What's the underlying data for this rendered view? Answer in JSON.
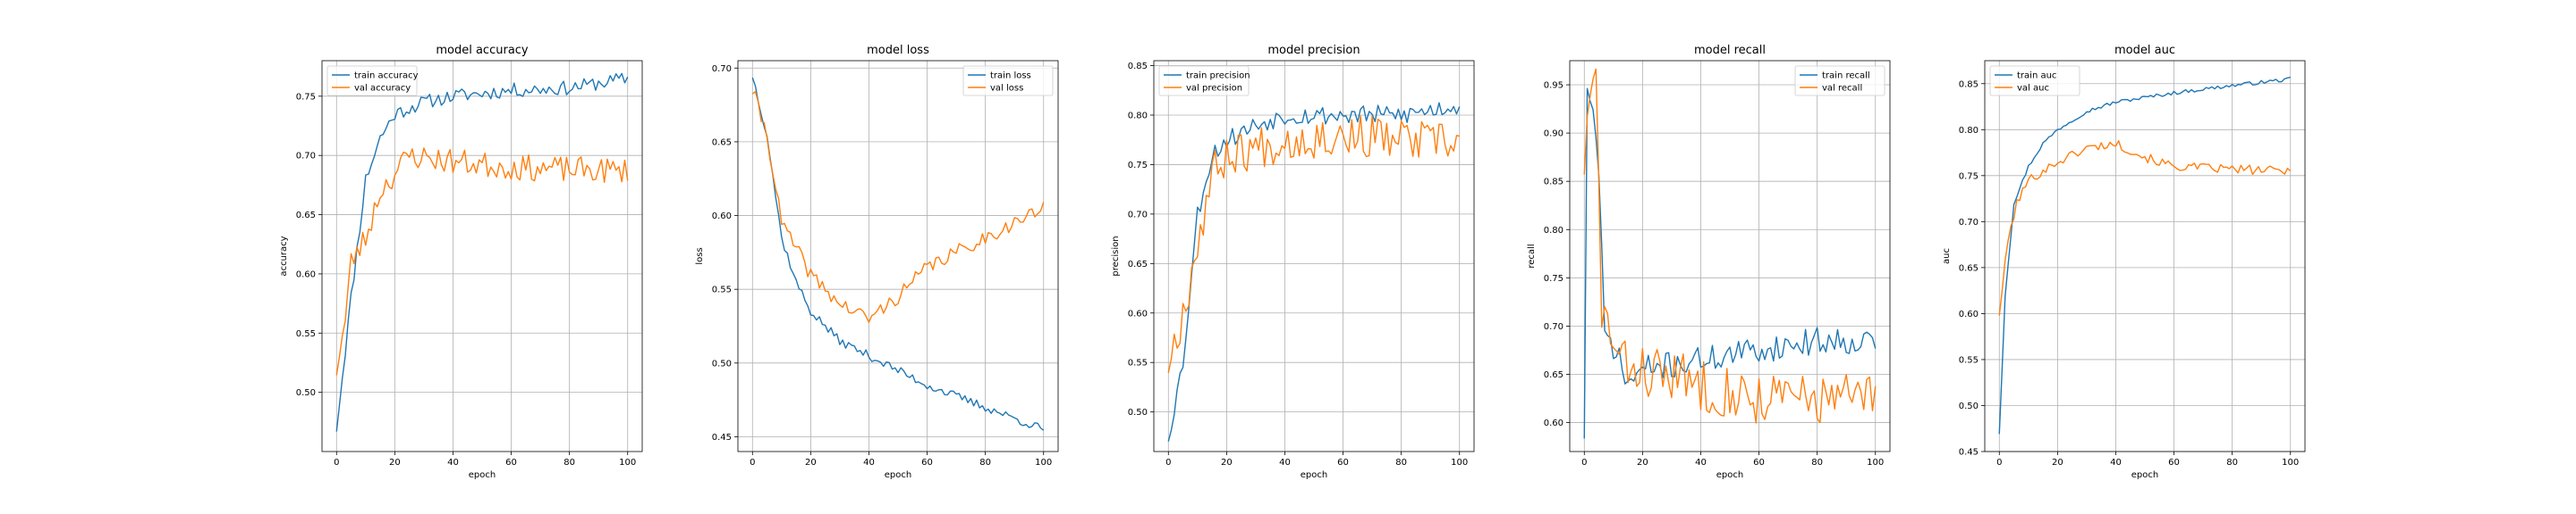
{
  "colors": {
    "train": "#1f77b4",
    "val": "#ff7f0e",
    "grid": "#b0b0b0",
    "axes": "#000000"
  },
  "chart_data": [
    {
      "type": "line",
      "title": "model accuracy",
      "xlabel": "epoch",
      "ylabel": "accuracy",
      "xlim": [
        -5,
        105
      ],
      "ylim": [
        0.45,
        0.78
      ],
      "xticks": [
        0,
        20,
        40,
        60,
        80,
        100
      ],
      "yticks": [
        0.5,
        0.55,
        0.6,
        0.65,
        0.7,
        0.75
      ],
      "ytick_labels": [
        "0.50",
        "0.55",
        "0.60",
        "0.65",
        "0.70",
        "0.75"
      ],
      "grid": true,
      "legend_position": "upper-left",
      "series": [
        {
          "name": "train accuracy",
          "color": "#1f77b4",
          "keypoints": [
            [
              0,
              0.47
            ],
            [
              5,
              0.58
            ],
            [
              10,
              0.68
            ],
            [
              15,
              0.715
            ],
            [
              20,
              0.735
            ],
            [
              25,
              0.74
            ],
            [
              30,
              0.745
            ],
            [
              40,
              0.75
            ],
            [
              60,
              0.755
            ],
            [
              80,
              0.757
            ],
            [
              100,
              0.765
            ]
          ],
          "noise": 0.006,
          "seed": 11
        },
        {
          "name": "val accuracy",
          "color": "#ff7f0e",
          "keypoints": [
            [
              0,
              0.52
            ],
            [
              3,
              0.56
            ],
            [
              5,
              0.61
            ],
            [
              10,
              0.63
            ],
            [
              15,
              0.67
            ],
            [
              20,
              0.685
            ],
            [
              25,
              0.7
            ],
            [
              40,
              0.695
            ],
            [
              60,
              0.69
            ],
            [
              80,
              0.688
            ],
            [
              100,
              0.687
            ]
          ],
          "noise": 0.011,
          "seed": 23
        }
      ]
    },
    {
      "type": "line",
      "title": "model loss",
      "xlabel": "epoch",
      "ylabel": "loss",
      "xlim": [
        -5,
        105
      ],
      "ylim": [
        0.44,
        0.705
      ],
      "xticks": [
        0,
        20,
        40,
        60,
        80,
        100
      ],
      "yticks": [
        0.45,
        0.5,
        0.55,
        0.6,
        0.65,
        0.7
      ],
      "ytick_labels": [
        "0.45",
        "0.50",
        "0.55",
        "0.60",
        "0.65",
        "0.70"
      ],
      "grid": true,
      "legend_position": "upper-right",
      "series": [
        {
          "name": "train loss",
          "color": "#1f77b4",
          "keypoints": [
            [
              0,
              0.695
            ],
            [
              5,
              0.655
            ],
            [
              10,
              0.585
            ],
            [
              15,
              0.555
            ],
            [
              20,
              0.535
            ],
            [
              30,
              0.515
            ],
            [
              40,
              0.505
            ],
            [
              60,
              0.485
            ],
            [
              80,
              0.47
            ],
            [
              100,
              0.455
            ]
          ],
          "noise": 0.003,
          "seed": 37
        },
        {
          "name": "val loss",
          "color": "#ff7f0e",
          "keypoints": [
            [
              0,
              0.685
            ],
            [
              5,
              0.655
            ],
            [
              10,
              0.595
            ],
            [
              20,
              0.56
            ],
            [
              30,
              0.54
            ],
            [
              40,
              0.53
            ],
            [
              50,
              0.545
            ],
            [
              60,
              0.565
            ],
            [
              70,
              0.575
            ],
            [
              80,
              0.585
            ],
            [
              90,
              0.595
            ],
            [
              100,
              0.605
            ]
          ],
          "noise": 0.005,
          "seed": 41
        }
      ]
    },
    {
      "type": "line",
      "title": "model precision",
      "xlabel": "epoch",
      "ylabel": "precision",
      "xlim": [
        -5,
        105
      ],
      "ylim": [
        0.46,
        0.855
      ],
      "xticks": [
        0,
        20,
        40,
        60,
        80,
        100
      ],
      "yticks": [
        0.5,
        0.55,
        0.6,
        0.65,
        0.7,
        0.75,
        0.8,
        0.85
      ],
      "ytick_labels": [
        "0.50",
        "0.55",
        "0.60",
        "0.65",
        "0.70",
        "0.75",
        "0.80",
        "0.85"
      ],
      "grid": true,
      "legend_position": "upper-left",
      "series": [
        {
          "name": "train precision",
          "color": "#1f77b4",
          "keypoints": [
            [
              0,
              0.475
            ],
            [
              5,
              0.55
            ],
            [
              10,
              0.7
            ],
            [
              15,
              0.76
            ],
            [
              20,
              0.775
            ],
            [
              30,
              0.79
            ],
            [
              40,
              0.8
            ],
            [
              60,
              0.8
            ],
            [
              80,
              0.8
            ],
            [
              100,
              0.81
            ]
          ],
          "noise": 0.01,
          "seed": 53
        },
        {
          "name": "val precision",
          "color": "#ff7f0e",
          "keypoints": [
            [
              0,
              0.55
            ],
            [
              5,
              0.6
            ],
            [
              10,
              0.67
            ],
            [
              15,
              0.74
            ],
            [
              20,
              0.76
            ],
            [
              40,
              0.775
            ],
            [
              60,
              0.78
            ],
            [
              80,
              0.775
            ],
            [
              100,
              0.77
            ]
          ],
          "noise": 0.022,
          "seed": 67
        }
      ]
    },
    {
      "type": "line",
      "title": "model recall",
      "xlabel": "epoch",
      "ylabel": "recall",
      "xlim": [
        -5,
        105
      ],
      "ylim": [
        0.57,
        0.975
      ],
      "xticks": [
        0,
        20,
        40,
        60,
        80,
        100
      ],
      "yticks": [
        0.6,
        0.65,
        0.7,
        0.75,
        0.8,
        0.85,
        0.9,
        0.95
      ],
      "ytick_labels": [
        "0.60",
        "0.65",
        "0.70",
        "0.75",
        "0.80",
        "0.85",
        "0.90",
        "0.95"
      ],
      "grid": true,
      "legend_position": "upper-right",
      "series": [
        {
          "name": "train recall",
          "color": "#1f77b4",
          "keypoints": [
            [
              0,
              0.59
            ],
            [
              1,
              0.94
            ],
            [
              3,
              0.93
            ],
            [
              5,
              0.85
            ],
            [
              7,
              0.69
            ],
            [
              10,
              0.68
            ],
            [
              15,
              0.64
            ],
            [
              20,
              0.655
            ],
            [
              40,
              0.665
            ],
            [
              60,
              0.675
            ],
            [
              80,
              0.685
            ],
            [
              100,
              0.685
            ]
          ],
          "noise": 0.014,
          "seed": 71
        },
        {
          "name": "val recall",
          "color": "#ff7f0e",
          "keypoints": [
            [
              0,
              0.87
            ],
            [
              2,
              0.93
            ],
            [
              4,
              0.955
            ],
            [
              6,
              0.72
            ],
            [
              8,
              0.7
            ],
            [
              12,
              0.66
            ],
            [
              20,
              0.655
            ],
            [
              40,
              0.64
            ],
            [
              60,
              0.625
            ],
            [
              80,
              0.625
            ],
            [
              100,
              0.625
            ]
          ],
          "noise": 0.028,
          "seed": 83
        }
      ]
    },
    {
      "type": "line",
      "title": "model auc",
      "xlabel": "epoch",
      "ylabel": "auc",
      "xlim": [
        -5,
        105
      ],
      "ylim": [
        0.45,
        0.875
      ],
      "xticks": [
        0,
        20,
        40,
        60,
        80,
        100
      ],
      "yticks": [
        0.45,
        0.5,
        0.55,
        0.6,
        0.65,
        0.7,
        0.75,
        0.8,
        0.85
      ],
      "ytick_labels": [
        "0.45",
        "0.50",
        "0.55",
        "0.60",
        "0.65",
        "0.70",
        "0.75",
        "0.80",
        "0.85"
      ],
      "grid": true,
      "legend_position": "upper-left",
      "series": [
        {
          "name": "train auc",
          "color": "#1f77b4",
          "keypoints": [
            [
              0,
              0.47
            ],
            [
              2,
              0.62
            ],
            [
              5,
              0.72
            ],
            [
              10,
              0.76
            ],
            [
              15,
              0.785
            ],
            [
              20,
              0.8
            ],
            [
              30,
              0.82
            ],
            [
              40,
              0.83
            ],
            [
              60,
              0.84
            ],
            [
              80,
              0.848
            ],
            [
              100,
              0.855
            ]
          ],
          "noise": 0.002,
          "seed": 97
        },
        {
          "name": "val auc",
          "color": "#ff7f0e",
          "keypoints": [
            [
              0,
              0.6
            ],
            [
              3,
              0.68
            ],
            [
              6,
              0.72
            ],
            [
              10,
              0.745
            ],
            [
              20,
              0.765
            ],
            [
              30,
              0.78
            ],
            [
              40,
              0.785
            ],
            [
              50,
              0.77
            ],
            [
              60,
              0.76
            ],
            [
              80,
              0.757
            ],
            [
              100,
              0.755
            ]
          ],
          "noise": 0.005,
          "seed": 101
        }
      ]
    }
  ]
}
